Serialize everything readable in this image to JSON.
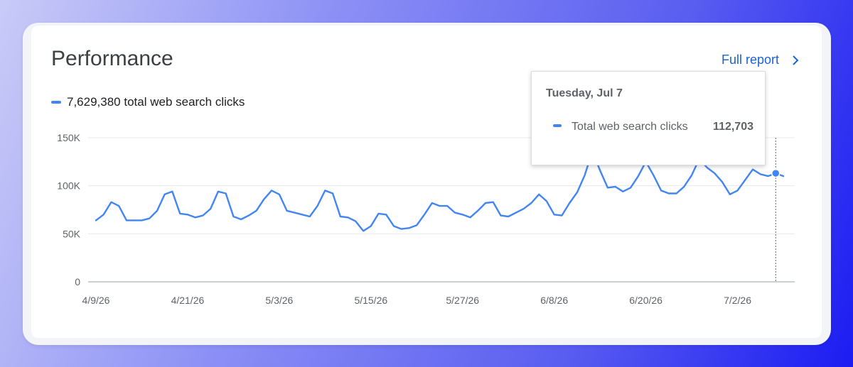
{
  "header": {
    "title": "Performance",
    "full_report_label": "Full report"
  },
  "legend": {
    "label": "7,629,380 total web search clicks",
    "color": "#4285f4"
  },
  "tooltip": {
    "date": "Tuesday, Jul 7",
    "series_label": "Total web search clicks",
    "value": "112,703"
  },
  "chart_data": {
    "type": "line",
    "title": "",
    "xlabel": "",
    "ylabel": "",
    "ylim": [
      0,
      150000
    ],
    "y_ticks": [
      "0",
      "50K",
      "100K",
      "150K"
    ],
    "y_tick_values": [
      0,
      50000,
      100000,
      150000
    ],
    "x_tick_labels": [
      "4/9/26",
      "4/21/26",
      "5/3/26",
      "5/15/26",
      "5/27/26",
      "6/8/26",
      "6/20/26",
      "7/2/26"
    ],
    "x_tick_index": [
      0,
      12,
      24,
      36,
      48,
      60,
      72,
      84
    ],
    "highlight_index": 89,
    "grid": true,
    "series": [
      {
        "color": "#4285f4",
        "values": [
          64000,
          70000,
          83000,
          79000,
          64000,
          64000,
          64000,
          66000,
          74000,
          91000,
          94000,
          71000,
          70000,
          67000,
          69000,
          76000,
          94000,
          92000,
          68000,
          65000,
          69000,
          74000,
          86000,
          95000,
          91000,
          74000,
          72000,
          70000,
          68000,
          79000,
          95000,
          92000,
          68000,
          67000,
          63000,
          53000,
          58000,
          71000,
          70000,
          58000,
          55000,
          56000,
          59000,
          70000,
          82000,
          79000,
          79000,
          72000,
          70000,
          67000,
          74000,
          82000,
          83000,
          69000,
          68000,
          72000,
          76000,
          82000,
          91000,
          84000,
          70000,
          69000,
          82000,
          93000,
          111000,
          136000,
          116000,
          98000,
          99000,
          94000,
          98000,
          110000,
          125000,
          111000,
          95000,
          92000,
          92000,
          99000,
          111000,
          128000,
          119000,
          113000,
          104000,
          91000,
          95000,
          106000,
          117000,
          112000,
          110000,
          113000,
          110000
        ]
      }
    ]
  }
}
